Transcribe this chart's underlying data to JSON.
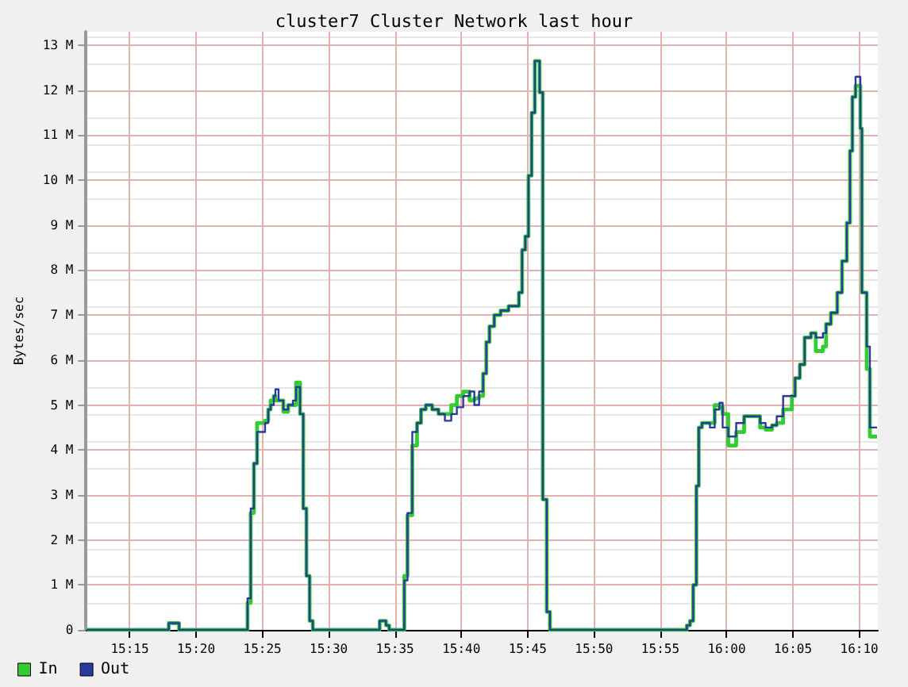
{
  "chart_data": {
    "type": "step",
    "title": "cluster7 Cluster Network last hour",
    "ylabel": "Bytes/sec",
    "x": [
      15.196,
      15.299,
      15.312,
      15.398,
      15.402,
      15.406,
      15.41,
      15.42,
      15.424,
      15.427,
      15.431,
      15.433,
      15.437,
      15.443,
      15.449,
      15.455,
      15.459,
      15.464,
      15.468,
      15.472,
      15.476,
      15.48,
      15.564,
      15.572,
      15.576,
      15.595,
      15.599,
      15.605,
      15.611,
      15.616,
      15.622,
      15.63,
      15.638,
      15.646,
      15.654,
      15.661,
      15.669,
      15.677,
      15.683,
      15.689,
      15.694,
      15.698,
      15.702,
      15.708,
      15.716,
      15.726,
      15.739,
      15.743,
      15.747,
      15.751,
      15.755,
      15.759,
      15.765,
      15.769,
      15.774,
      15.778,
      15.95,
      15.954,
      15.958,
      15.962,
      15.965,
      15.969,
      15.979,
      15.985,
      15.991,
      15.995,
      16.002,
      16.012,
      16.022,
      16.042,
      16.049,
      16.057,
      16.063,
      16.071,
      16.082,
      16.086,
      16.092,
      16.098,
      16.106,
      16.112,
      16.121,
      16.125,
      16.131,
      16.139,
      16.145,
      16.151,
      16.155,
      16.158,
      16.162,
      16.168,
      16.17,
      16.176,
      16.18,
      16.189
    ],
    "series": [
      {
        "name": "In",
        "color": "#33cc33",
        "values": [
          0,
          0.15,
          0,
          0.6,
          2.6,
          3.7,
          4.6,
          4.65,
          4.9,
          5.1,
          5.2,
          5.1,
          5.1,
          4.85,
          5.0,
          5.0,
          5.5,
          4.8,
          2.7,
          1.2,
          0.2,
          0,
          0.2,
          0.1,
          0,
          1.2,
          2.55,
          4.1,
          4.6,
          4.9,
          5.0,
          4.9,
          4.8,
          4.8,
          5.0,
          5.2,
          5.3,
          5.1,
          5.15,
          5.2,
          5.7,
          6.4,
          6.75,
          7.0,
          7.1,
          7.2,
          7.5,
          8.45,
          8.75,
          10.1,
          11.5,
          12.65,
          11.95,
          2.9,
          0.4,
          0,
          0.1,
          0.2,
          1.0,
          3.2,
          4.5,
          4.6,
          4.6,
          5.0,
          4.95,
          4.8,
          4.1,
          4.4,
          4.75,
          4.5,
          4.45,
          4.55,
          4.6,
          4.9,
          5.2,
          5.6,
          5.9,
          6.5,
          6.6,
          6.2,
          6.3,
          6.8,
          7.05,
          7.5,
          8.2,
          9.05,
          10.65,
          11.85,
          12.1,
          11.15,
          7.5,
          5.8,
          4.3,
          4.3
        ]
      },
      {
        "name": "Out",
        "color": "#2a3a9c",
        "values": [
          0,
          0.15,
          0,
          0.7,
          2.7,
          3.7,
          4.4,
          4.6,
          4.9,
          5.0,
          5.2,
          5.35,
          5.1,
          4.9,
          5.0,
          5.1,
          5.4,
          4.8,
          2.7,
          1.2,
          0.2,
          0,
          0.2,
          0.1,
          0,
          1.1,
          2.6,
          4.4,
          4.6,
          4.9,
          5.0,
          4.9,
          4.8,
          4.65,
          4.8,
          4.95,
          5.2,
          5.3,
          5.0,
          5.3,
          5.7,
          6.4,
          6.75,
          7.0,
          7.1,
          7.2,
          7.5,
          8.45,
          8.75,
          10.1,
          11.5,
          12.65,
          11.95,
          2.9,
          0.4,
          0,
          0.1,
          0.2,
          1.0,
          3.2,
          4.5,
          4.6,
          4.5,
          4.9,
          5.05,
          4.5,
          4.3,
          4.6,
          4.75,
          4.6,
          4.5,
          4.55,
          4.75,
          5.2,
          5.2,
          5.6,
          5.9,
          6.5,
          6.6,
          6.5,
          6.6,
          6.8,
          7.05,
          7.5,
          8.2,
          9.05,
          10.65,
          11.85,
          12.3,
          11.15,
          7.5,
          6.3,
          4.5,
          4.5
        ]
      }
    ],
    "xlim": [
      15.195,
      16.19
    ],
    "xticks": [
      {
        "value": 15.25,
        "label": "15:15"
      },
      {
        "value": 15.3333,
        "label": "15:20"
      },
      {
        "value": 15.4167,
        "label": "15:25"
      },
      {
        "value": 15.5,
        "label": "15:30"
      },
      {
        "value": 15.5833,
        "label": "15:35"
      },
      {
        "value": 15.6667,
        "label": "15:40"
      },
      {
        "value": 15.75,
        "label": "15:45"
      },
      {
        "value": 15.8333,
        "label": "15:50"
      },
      {
        "value": 15.9167,
        "label": "15:55"
      },
      {
        "value": 16,
        "label": "16:00"
      },
      {
        "value": 16.0833,
        "label": "16:05"
      },
      {
        "value": 16.1667,
        "label": "16:10"
      }
    ],
    "ylim": [
      0,
      13.3
    ],
    "yticks": [
      0,
      {
        "value": 1,
        "label": "1 M"
      },
      {
        "value": 2,
        "label": "2 M"
      },
      {
        "value": 3,
        "label": "3 M"
      },
      {
        "value": 4,
        "label": "4 M"
      },
      {
        "value": 5,
        "label": "5 M"
      },
      {
        "value": 6,
        "label": "6 M"
      },
      {
        "value": 7,
        "label": "7 M"
      },
      {
        "value": 8,
        "label": "8 M"
      },
      {
        "value": 9,
        "label": "9 M"
      },
      {
        "value": 10,
        "label": "10 M"
      },
      {
        "value": 11,
        "label": "11 M"
      },
      {
        "value": 12,
        "label": "12 M"
      },
      {
        "value": 13,
        "label": "13 M"
      }
    ],
    "grid": true,
    "legend": "bottom left",
    "marker": "none",
    "line_style": "solid"
  }
}
